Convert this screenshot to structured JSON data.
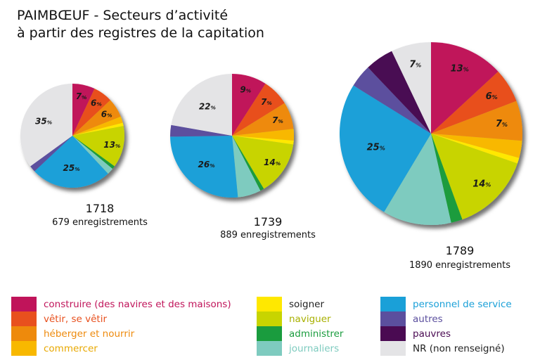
{
  "title": {
    "line1": "PAIMBŒUF - Secteurs d’activité",
    "line2": "à partir des registres de la capitation"
  },
  "categories": [
    {
      "key": "construire",
      "label": "construire (des navires et des maisons)",
      "color": "#c0145a"
    },
    {
      "key": "vetir",
      "label": "vêtir, se vêtir",
      "color": "#e8501e"
    },
    {
      "key": "heberger",
      "label": "héberger et nourrir",
      "color": "#ee8a0c"
    },
    {
      "key": "commercer",
      "label": "commercer",
      "color": "#f8b800"
    },
    {
      "key": "soigner",
      "label": "soigner",
      "color": "#ffe800"
    },
    {
      "key": "naviguer",
      "label": "naviguer",
      "color": "#c8d400"
    },
    {
      "key": "administrer",
      "label": "administrer",
      "color": "#1a9c3e"
    },
    {
      "key": "journaliers",
      "label": "journaliers",
      "color": "#7ecbbf"
    },
    {
      "key": "service",
      "label": "personnel de service",
      "color": "#1aa0d8"
    },
    {
      "key": "autres",
      "label": "autres",
      "color": "#5b4f9e"
    },
    {
      "key": "pauvres",
      "label": "pauvres",
      "color": "#4a0a52"
    },
    {
      "key": "nr",
      "label": "NR (non renseigné)",
      "color": "#e4e4e6"
    }
  ],
  "percent_sign": "%",
  "chart_data": [
    {
      "type": "pie",
      "year": "1718",
      "records": "679 enregistrements",
      "slices": [
        {
          "category": "construire",
          "value": 7,
          "label": "7"
        },
        {
          "category": "vetir",
          "value": 6,
          "label": "6"
        },
        {
          "category": "heberger",
          "value": 6,
          "label": "6"
        },
        {
          "category": "commercer",
          "value": 2
        },
        {
          "category": "soigner",
          "value": 1
        },
        {
          "category": "naviguer",
          "value": 13,
          "label": "13"
        },
        {
          "category": "administrer",
          "value": 1
        },
        {
          "category": "journaliers",
          "value": 2
        },
        {
          "category": "service",
          "value": 25,
          "label": "25"
        },
        {
          "category": "autres",
          "value": 2
        },
        {
          "category": "pauvres",
          "value": 0
        },
        {
          "category": "nr",
          "value": 35,
          "label": "35"
        }
      ]
    },
    {
      "type": "pie",
      "year": "1739",
      "records": "889 enregistrements",
      "slices": [
        {
          "category": "construire",
          "value": 9,
          "label": "9"
        },
        {
          "category": "vetir",
          "value": 7,
          "label": "7"
        },
        {
          "category": "heberger",
          "value": 7,
          "label": "7"
        },
        {
          "category": "commercer",
          "value": 3
        },
        {
          "category": "soigner",
          "value": 1
        },
        {
          "category": "naviguer",
          "value": 14,
          "label": "14"
        },
        {
          "category": "administrer",
          "value": 1
        },
        {
          "category": "journaliers",
          "value": 6
        },
        {
          "category": "service",
          "value": 26,
          "label": "26"
        },
        {
          "category": "autres",
          "value": 3
        },
        {
          "category": "pauvres",
          "value": 0
        },
        {
          "category": "nr",
          "value": 22,
          "label": "22"
        }
      ]
    },
    {
      "type": "pie",
      "year": "1789",
      "records": "1890 enregistrements",
      "slices": [
        {
          "category": "construire",
          "value": 13,
          "label": "13"
        },
        {
          "category": "vetir",
          "value": 6,
          "label": "6"
        },
        {
          "category": "heberger",
          "value": 7,
          "label": "7"
        },
        {
          "category": "commercer",
          "value": 3
        },
        {
          "category": "soigner",
          "value": 1
        },
        {
          "category": "naviguer",
          "value": 14,
          "label": "14"
        },
        {
          "category": "administrer",
          "value": 2
        },
        {
          "category": "journaliers",
          "value": 12
        },
        {
          "category": "service",
          "value": 25,
          "label": "25"
        },
        {
          "category": "autres",
          "value": 4
        },
        {
          "category": "pauvres",
          "value": 5
        },
        {
          "category": "nr",
          "value": 7,
          "label": "7"
        }
      ]
    }
  ]
}
